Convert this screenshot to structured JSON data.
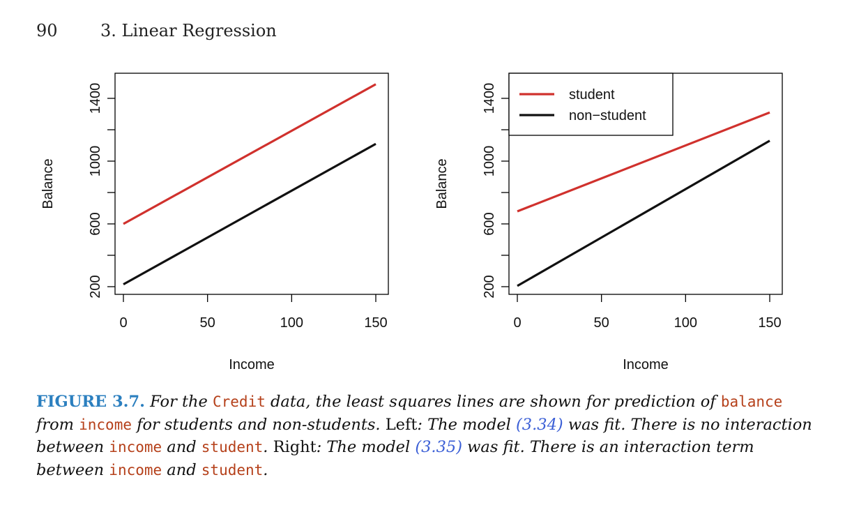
{
  "header": {
    "page_number": "90",
    "section": "3. Linear Regression"
  },
  "chart_data": [
    {
      "type": "line",
      "xlabel": "Income",
      "ylabel": "Balance",
      "xlim": [
        0,
        150
      ],
      "ylim": [
        200,
        1500
      ],
      "x_ticks": [
        0,
        50,
        100,
        150
      ],
      "y_ticks": [
        200,
        600,
        1000,
        1400
      ],
      "grid": false,
      "series": [
        {
          "name": "student",
          "color": "#d0312d",
          "x": [
            0,
            150
          ],
          "y": [
            600,
            1490
          ]
        },
        {
          "name": "non-student",
          "color": "#111111",
          "x": [
            0,
            150
          ],
          "y": [
            215,
            1110
          ]
        }
      ]
    },
    {
      "type": "line",
      "xlabel": "Income",
      "ylabel": "Balance",
      "xlim": [
        0,
        150
      ],
      "ylim": [
        200,
        1500
      ],
      "x_ticks": [
        0,
        50,
        100,
        150
      ],
      "y_ticks": [
        200,
        600,
        1000,
        1400
      ],
      "grid": false,
      "legend_position": "top-left",
      "legend": [
        "student",
        "non−student"
      ],
      "series": [
        {
          "name": "student",
          "color": "#d0312d",
          "x": [
            0,
            150
          ],
          "y": [
            680,
            1310
          ]
        },
        {
          "name": "non-student",
          "color": "#111111",
          "x": [
            0,
            150
          ],
          "y": [
            205,
            1130
          ]
        }
      ]
    }
  ],
  "caption": {
    "label": "FIGURE 3.7.",
    "t1": " For the ",
    "c1": "Credit",
    "t2": " data, the least squares lines are shown for prediction of ",
    "c2": "balance",
    "t3": " from ",
    "c3": "income",
    "t4": " for students and non-students. ",
    "left": "Left",
    "t5": ": The model ",
    "ref1": "(3.34)",
    "t6": " was fit. There is no interaction between ",
    "c4": "income",
    "t7": " and ",
    "c5": "student",
    "t8": ". ",
    "right": "Right",
    "t9": ": The model ",
    "ref2": "(3.35)",
    "t10": " was fit. There is an interaction term between ",
    "c6": "income",
    "t11": " and ",
    "c7": "student",
    "t12": "."
  }
}
